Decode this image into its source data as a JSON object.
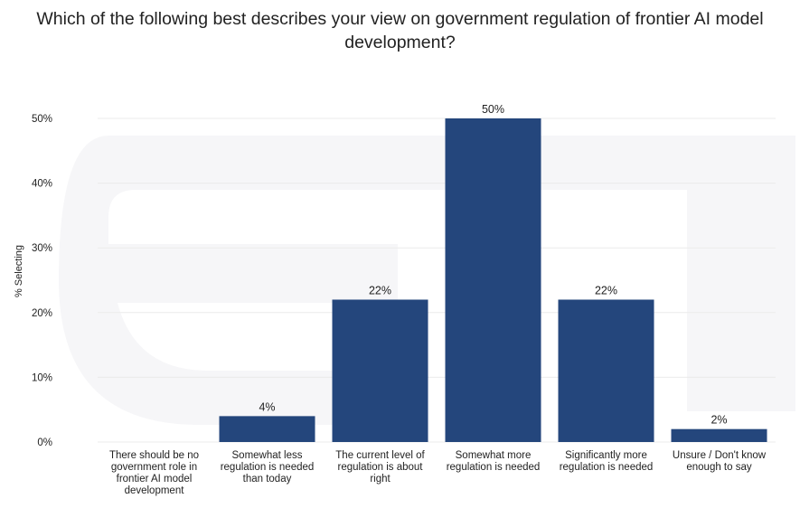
{
  "colors": {
    "bar": "#24467c",
    "grid": "#ebebeb",
    "watermark": "#f5f5f7"
  },
  "chart_data": {
    "type": "bar",
    "title": "Which of the following best describes your view on government regulation of frontier AI model development?",
    "xlabel": "",
    "ylabel": "% Selecting",
    "ylim": [
      0,
      50
    ],
    "yticks": [
      "0%",
      "10%",
      "20%",
      "30%",
      "40%",
      "50%"
    ],
    "categories": [
      "There should be no government role in frontier AI model development",
      "Somewhat less regulation is needed than today",
      "The current level of regulation is about right",
      "Somewhat more regulation is needed",
      "Significantly more regulation is needed",
      "Unsure / Don't know enough to say"
    ],
    "values": [
      0,
      4,
      22,
      50,
      22,
      2
    ],
    "data_labels": [
      "",
      "4%",
      "22%",
      "50%",
      "22%",
      "2%"
    ],
    "grid": true
  }
}
